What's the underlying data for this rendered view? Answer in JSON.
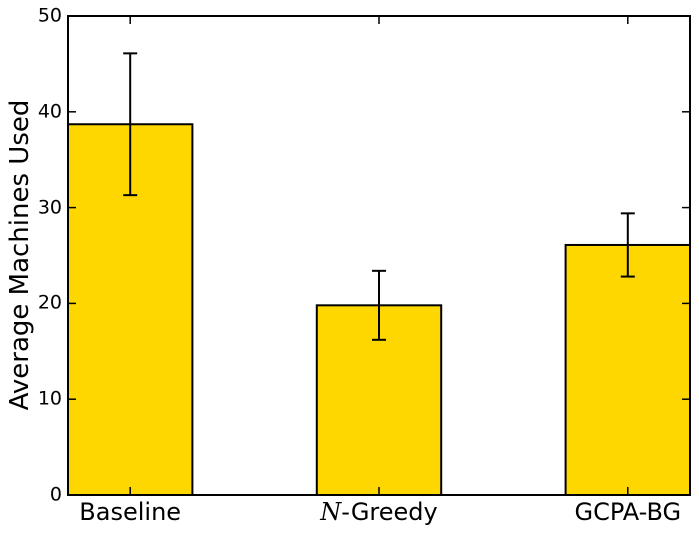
{
  "figure": {
    "background": "#ffffff",
    "frame_color": "#000000"
  },
  "chart_data": {
    "type": "bar",
    "title": "",
    "xlabel": "",
    "ylabel": "Average Machines Used",
    "categories": [
      "Baseline",
      "N-Greedy",
      "GCPA-BG"
    ],
    "categories_rich": [
      {
        "italic": "",
        "text": "Baseline"
      },
      {
        "italic": "N",
        "text": "-Greedy"
      },
      {
        "italic": "",
        "text": "GCPA-BG"
      }
    ],
    "values": [
      38.7,
      19.8,
      26.1
    ],
    "errors": [
      7.4,
      3.6,
      3.3
    ],
    "ylim": [
      0,
      50
    ],
    "yticks": [
      0,
      10,
      20,
      30,
      40,
      50
    ],
    "grid": false,
    "legend": null,
    "bar_color": "#FFD700",
    "bar_edge_color": "#000000",
    "error_color": "#000000",
    "tick_style": "inward-all-spines",
    "bar_width_fraction": 0.2,
    "bar_centers_fraction": [
      0.1,
      0.5,
      0.9
    ]
  }
}
